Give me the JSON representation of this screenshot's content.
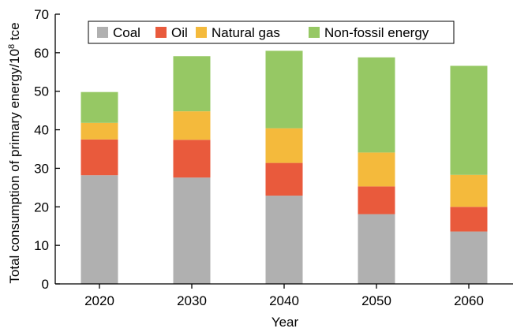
{
  "chart_data": {
    "type": "bar",
    "stacked": true,
    "categories": [
      "2020",
      "2030",
      "2040",
      "2050",
      "2060"
    ],
    "series": [
      {
        "name": "Coal",
        "color": "#b0b0b0",
        "values": [
          28.2,
          27.6,
          22.9,
          18.1,
          13.6
        ]
      },
      {
        "name": "Oil",
        "color": "#e95a3c",
        "values": [
          9.3,
          9.8,
          8.5,
          7.2,
          6.4
        ]
      },
      {
        "name": "Natural gas",
        "color": "#f4ba3c",
        "values": [
          4.3,
          7.4,
          9.0,
          8.8,
          8.3
        ]
      },
      {
        "name": "Non-fossil energy",
        "color": "#96c864",
        "values": [
          8.0,
          14.3,
          20.1,
          24.7,
          28.3
        ]
      }
    ],
    "xlabel": "Year",
    "ylabel_main": "Total consumption of primary energy/10",
    "ylabel_sup": "8",
    "ylabel_unit": " tce",
    "ylim": [
      0,
      70
    ],
    "yticks": [
      "0",
      "10",
      "20",
      "30",
      "40",
      "50",
      "60",
      "70"
    ],
    "grid": false,
    "legend_position": "top"
  }
}
